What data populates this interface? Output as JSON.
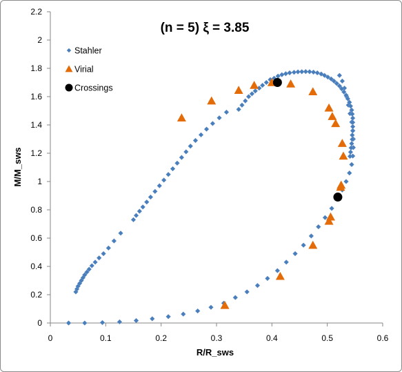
{
  "chart_data": {
    "type": "scatter",
    "title": "(n = 5)   ξ = 3.85",
    "xlabel": "R/R_sws",
    "ylabel": "M/M_sws",
    "xlim": [
      0,
      0.6
    ],
    "ylim": [
      0,
      2.2
    ],
    "xticks": [
      "0",
      "0.1",
      "0.2",
      "0.3",
      "0.4",
      "0.5",
      "0.6"
    ],
    "yticks": [
      "0",
      "0.2",
      "0.4",
      "0.6",
      "0.8",
      "1",
      "1.2",
      "1.4",
      "1.6",
      "1.8",
      "2",
      "2.2"
    ],
    "grid": false,
    "legend_position": "top-left",
    "series": [
      {
        "name": "Stahler",
        "marker": "diamond",
        "color": "#4a7ebb",
        "x": [
          0.033,
          0.062,
          0.094,
          0.125,
          0.155,
          0.184,
          0.213,
          0.24,
          0.266,
          0.29,
          0.313,
          0.334,
          0.355,
          0.374,
          0.392,
          0.41,
          0.426,
          0.442,
          0.457,
          0.471,
          0.484,
          0.496,
          0.508,
          0.518,
          0.527,
          0.534,
          0.54,
          0.544,
          0.546,
          0.547,
          0.547,
          0.546,
          0.544,
          0.541,
          0.538,
          0.535,
          0.531,
          0.527,
          0.522,
          0.34,
          0.346,
          0.352,
          0.358,
          0.364,
          0.37,
          0.377,
          0.383,
          0.39,
          0.397,
          0.404,
          0.411,
          0.418,
          0.425,
          0.432,
          0.44,
          0.447,
          0.454,
          0.461,
          0.468,
          0.475,
          0.482,
          0.489,
          0.495,
          0.501,
          0.507,
          0.512,
          0.517,
          0.522,
          0.526,
          0.53,
          0.534,
          0.537,
          0.54,
          0.542,
          0.544,
          0.545,
          0.546,
          0.546,
          0.546,
          0.546,
          0.545,
          0.545,
          0.544,
          0.543,
          0.542,
          0.541,
          0.046,
          0.048,
          0.05,
          0.053,
          0.056,
          0.059,
          0.062,
          0.066,
          0.07,
          0.075,
          0.081,
          0.088,
          0.096,
          0.105,
          0.115,
          0.127,
          0.15,
          0.155,
          0.161,
          0.167,
          0.174,
          0.181,
          0.189,
          0.197,
          0.205,
          0.213,
          0.221,
          0.229,
          0.237,
          0.245,
          0.253,
          0.262,
          0.272,
          0.282,
          0.293,
          0.305,
          0.318
        ],
        "y": [
          0.0,
          0.0,
          0.003,
          0.008,
          0.017,
          0.03,
          0.045,
          0.063,
          0.085,
          0.111,
          0.14,
          0.18,
          0.22,
          0.265,
          0.315,
          0.37,
          0.43,
          0.49,
          0.55,
          0.615,
          0.68,
          0.745,
          0.81,
          0.875,
          0.94,
          1.0,
          1.06,
          1.12,
          1.18,
          1.24,
          1.3,
          1.36,
          1.42,
          1.48,
          1.54,
          1.6,
          1.66,
          1.71,
          1.75,
          1.51,
          1.54,
          1.57,
          1.6,
          1.62,
          1.64,
          1.66,
          1.68,
          1.7,
          1.72,
          1.73,
          1.745,
          1.755,
          1.762,
          1.768,
          1.772,
          1.775,
          1.776,
          1.777,
          1.776,
          1.773,
          1.768,
          1.76,
          1.75,
          1.738,
          1.725,
          1.71,
          1.693,
          1.675,
          1.655,
          1.633,
          1.61,
          1.585,
          1.56,
          1.533,
          1.505,
          1.477,
          1.448,
          1.418,
          1.388,
          1.358,
          1.328,
          1.298,
          1.268,
          1.238,
          1.208,
          1.178,
          0.22,
          0.24,
          0.26,
          0.28,
          0.3,
          0.32,
          0.34,
          0.36,
          0.38,
          0.405,
          0.43,
          0.46,
          0.49,
          0.53,
          0.58,
          0.635,
          0.73,
          0.76,
          0.79,
          0.82,
          0.855,
          0.89,
          0.93,
          0.97,
          1.01,
          1.05,
          1.09,
          1.13,
          1.17,
          1.21,
          1.25,
          1.29,
          1.33,
          1.37,
          1.41,
          1.45,
          1.49
        ]
      },
      {
        "name": "Virial",
        "marker": "triangle",
        "color": "#e36c09",
        "x": [
          0.237,
          0.291,
          0.34,
          0.368,
          0.4,
          0.434,
          0.474,
          0.503,
          0.509,
          0.515,
          0.527,
          0.529,
          0.525,
          0.524,
          0.506,
          0.503,
          0.474,
          0.415,
          0.315
        ],
        "y": [
          1.45,
          1.57,
          1.645,
          1.68,
          1.7,
          1.69,
          1.635,
          1.52,
          1.46,
          1.41,
          1.27,
          1.18,
          0.975,
          0.96,
          0.75,
          0.72,
          0.55,
          0.33,
          0.125
        ]
      },
      {
        "name": "Crossings",
        "marker": "circle",
        "color": "#000000",
        "x": [
          0.41,
          0.519
        ],
        "y": [
          1.7,
          0.89
        ]
      }
    ]
  }
}
